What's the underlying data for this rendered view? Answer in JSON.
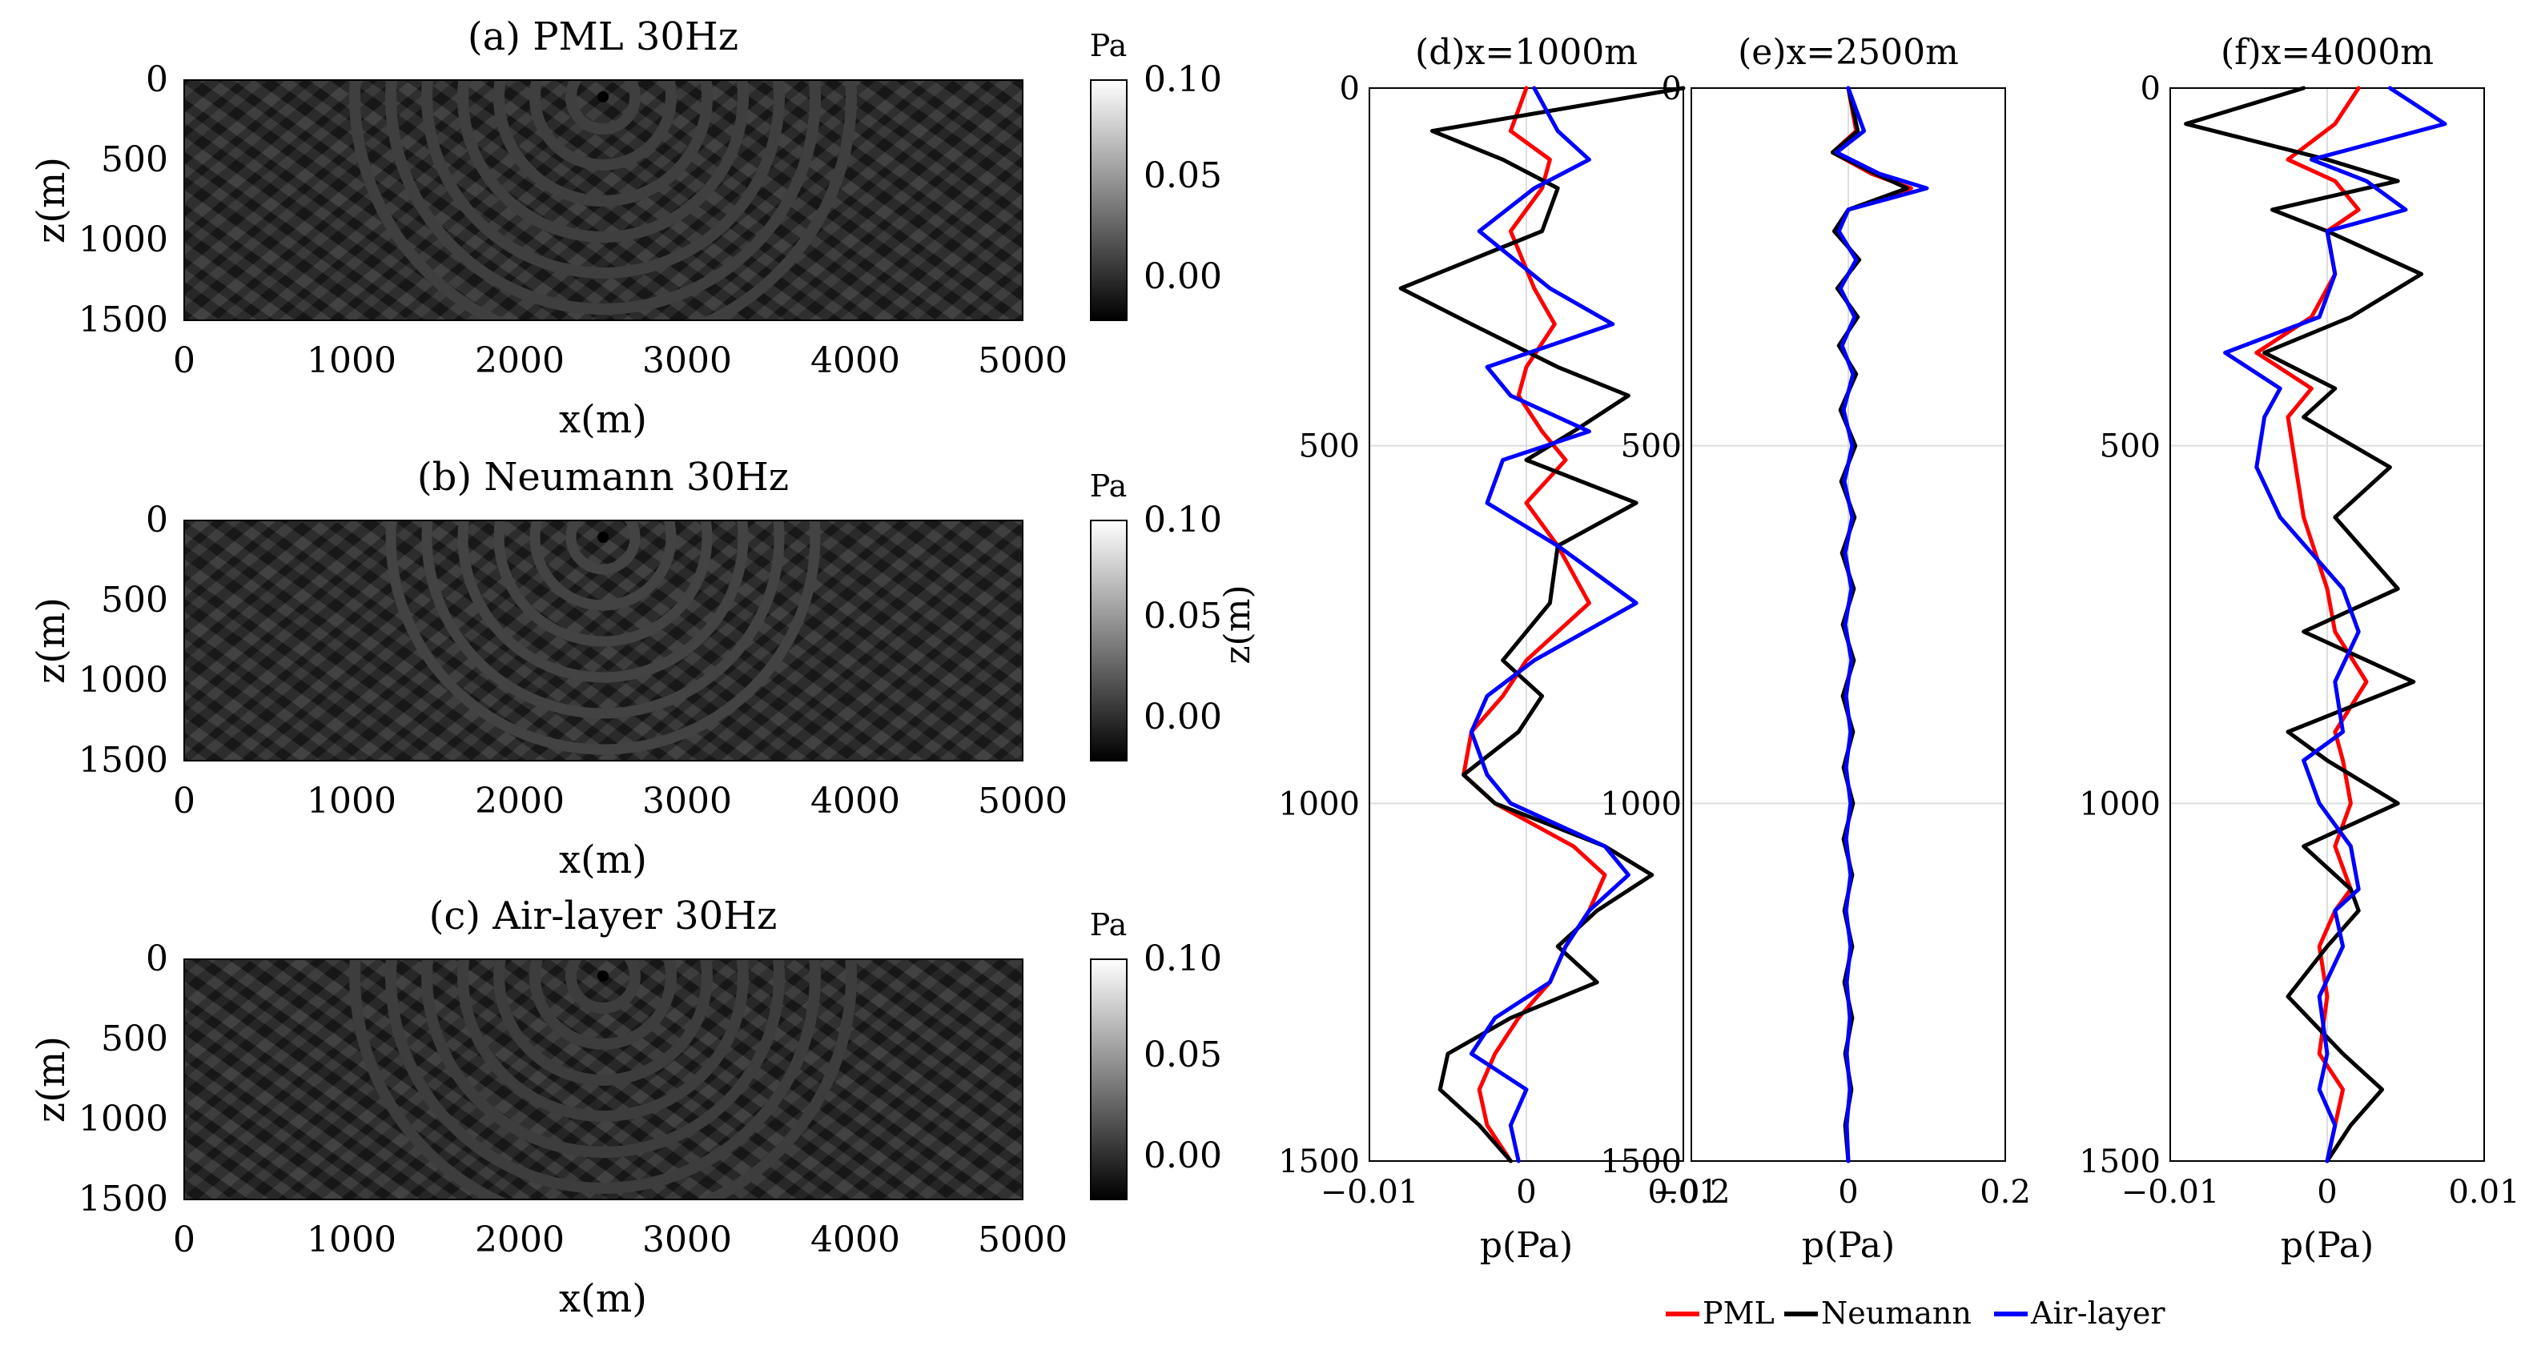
{
  "chart_data": [
    {
      "type": "heatmap",
      "title": "(a) PML 30Hz",
      "xlabel": "x(m)",
      "ylabel": "z(m)",
      "xlim": [
        0,
        5000
      ],
      "ylim": [
        1500,
        0
      ],
      "xticks": [
        "0",
        "1000",
        "2000",
        "3000",
        "4000",
        "5000"
      ],
      "yticks": [
        "0",
        "500",
        "1000",
        "1500"
      ],
      "source_x": 2500,
      "source_z": 100,
      "colorbar": {
        "unit": "Pa",
        "ticks": [
          "0.10",
          "0.05",
          "0.00"
        ],
        "range": [
          -0.02,
          0.1
        ]
      }
    },
    {
      "type": "heatmap",
      "title": "(b) Neumann 30Hz",
      "xlabel": "x(m)",
      "ylabel": "z(m)",
      "xlim": [
        0,
        5000
      ],
      "ylim": [
        1500,
        0
      ],
      "xticks": [
        "0",
        "1000",
        "2000",
        "3000",
        "4000",
        "5000"
      ],
      "yticks": [
        "0",
        "500",
        "1000",
        "1500"
      ],
      "source_x": 2500,
      "source_z": 100,
      "colorbar": {
        "unit": "Pa",
        "ticks": [
          "0.10",
          "0.05",
          "0.00"
        ],
        "range": [
          -0.02,
          0.1
        ]
      }
    },
    {
      "type": "heatmap",
      "title": "(c) Air-layer 30Hz",
      "xlabel": "x(m)",
      "ylabel": "z(m)",
      "xlim": [
        0,
        5000
      ],
      "ylim": [
        1500,
        0
      ],
      "xticks": [
        "0",
        "1000",
        "2000",
        "3000",
        "4000",
        "5000"
      ],
      "yticks": [
        "0",
        "500",
        "1000",
        "1500"
      ],
      "source_x": 2500,
      "source_z": 100,
      "colorbar": {
        "unit": "Pa",
        "ticks": [
          "0.10",
          "0.05",
          "0.00"
        ],
        "range": [
          -0.02,
          0.1
        ]
      }
    },
    {
      "type": "line",
      "title": "(d)x=1000m",
      "xlabel": "p(Pa)",
      "ylabel": "z(m)",
      "xlim": [
        -0.01,
        0.01
      ],
      "ylim": [
        1500,
        0
      ],
      "xticks": [
        "−0.01",
        "0",
        "0.01"
      ],
      "yticks": [
        "0",
        "500",
        "1000",
        "1500"
      ],
      "z": [
        0,
        60,
        100,
        140,
        200,
        280,
        330,
        390,
        430,
        480,
        520,
        580,
        640,
        720,
        800,
        850,
        900,
        960,
        1000,
        1060,
        1100,
        1150,
        1200,
        1250,
        1300,
        1350,
        1400,
        1450,
        1500
      ],
      "series": [
        {
          "name": "PML",
          "color": "#ff0000",
          "values": [
            0,
            -0.001,
            0.0015,
            0.001,
            -0.001,
            0.0005,
            0.0018,
            0.0,
            -0.0005,
            0.001,
            0.0025,
            0.0,
            0.002,
            0.004,
            0.0,
            -0.0015,
            -0.0035,
            -0.004,
            -0.002,
            0.003,
            0.005,
            0.004,
            0.0025,
            0.0015,
            -0.0005,
            -0.002,
            -0.003,
            -0.0025,
            -0.001
          ]
        },
        {
          "name": "Neumann",
          "color": "#000000",
          "values": [
            0.01,
            -0.006,
            -0.0015,
            0.002,
            0.001,
            -0.008,
            -0.0035,
            0.002,
            0.0065,
            0.003,
            0.0,
            0.007,
            0.002,
            0.0015,
            -0.0015,
            0.001,
            -0.0005,
            -0.004,
            -0.002,
            0.005,
            0.008,
            0.0045,
            0.002,
            0.0045,
            -0.001,
            -0.005,
            -0.0055,
            -0.003,
            -0.001
          ]
        },
        {
          "name": "Air-layer",
          "color": "#0000ff",
          "values": [
            0.0005,
            0.002,
            0.004,
            0.0005,
            -0.003,
            0.0015,
            0.0055,
            -0.0025,
            -0.001,
            0.004,
            -0.0015,
            -0.0025,
            0.002,
            0.007,
            0.0005,
            -0.0025,
            -0.0035,
            -0.0025,
            -0.001,
            0.005,
            0.0065,
            0.004,
            0.0025,
            0.0015,
            -0.002,
            -0.0035,
            0.0,
            -0.001,
            -0.0005
          ]
        }
      ],
      "grid": true
    },
    {
      "type": "line",
      "title": "(e)x=2500m",
      "xlabel": "p(Pa)",
      "ylabel": "",
      "xlim": [
        -0.2,
        0.2
      ],
      "ylim": [
        1500,
        0
      ],
      "xticks": [
        "−0.2",
        "0",
        "0.2"
      ],
      "yticks": [
        "0",
        "500",
        "1000",
        "1500"
      ],
      "z": [
        0,
        60,
        90,
        120,
        140,
        170,
        200,
        240,
        280,
        320,
        360,
        400,
        450,
        500,
        550,
        600,
        650,
        700,
        750,
        800,
        850,
        900,
        950,
        1000,
        1050,
        1100,
        1150,
        1200,
        1250,
        1300,
        1350,
        1400,
        1450,
        1500
      ],
      "series": [
        {
          "name": "PML",
          "color": "#ff0000",
          "values": [
            0.0,
            0.01,
            -0.02,
            0.03,
            0.08,
            0.0,
            -0.015,
            0.012,
            -0.012,
            0.01,
            -0.01,
            0.008,
            -0.008,
            0.007,
            -0.007,
            0.006,
            -0.006,
            0.005,
            -0.005,
            0.005,
            -0.005,
            0.004,
            -0.004,
            0.004,
            -0.004,
            0.004,
            -0.004,
            0.004,
            -0.004,
            0.004,
            -0.003,
            0.003,
            -0.003,
            0.0
          ]
        },
        {
          "name": "Neumann",
          "color": "#000000",
          "values": [
            0.0,
            0.012,
            -0.02,
            0.035,
            0.075,
            0.0,
            -0.018,
            0.014,
            -0.014,
            0.012,
            -0.012,
            0.01,
            -0.01,
            0.009,
            -0.009,
            0.008,
            -0.008,
            0.007,
            -0.007,
            0.007,
            -0.007,
            0.006,
            -0.006,
            0.006,
            -0.006,
            0.005,
            -0.005,
            0.005,
            -0.005,
            0.005,
            -0.004,
            0.004,
            -0.004,
            0.0
          ]
        },
        {
          "name": "Air-layer",
          "color": "#0000ff",
          "values": [
            0.0,
            0.02,
            -0.015,
            0.04,
            0.1,
            0.0,
            -0.012,
            0.01,
            -0.01,
            0.008,
            -0.008,
            0.006,
            -0.006,
            0.005,
            -0.005,
            0.005,
            -0.004,
            0.004,
            -0.004,
            0.004,
            -0.003,
            0.003,
            -0.003,
            0.003,
            -0.003,
            0.003,
            -0.003,
            0.003,
            -0.002,
            0.002,
            -0.002,
            0.002,
            -0.002,
            0.0
          ]
        }
      ],
      "grid": true
    },
    {
      "type": "line",
      "title": "(f)x=4000m",
      "xlabel": "p(Pa)",
      "ylabel": "",
      "xlim": [
        -0.01,
        0.01
      ],
      "ylim": [
        1500,
        0
      ],
      "xticks": [
        "−0.01",
        "0",
        "0.01"
      ],
      "yticks": [
        "0",
        "500",
        "1000",
        "1500"
      ],
      "z": [
        0,
        50,
        100,
        130,
        170,
        200,
        260,
        320,
        370,
        420,
        460,
        530,
        600,
        700,
        760,
        830,
        900,
        940,
        1000,
        1060,
        1120,
        1150,
        1200,
        1270,
        1350,
        1400,
        1450,
        1500
      ],
      "series": [
        {
          "name": "PML",
          "color": "#ff0000",
          "values": [
            0.002,
            0.0005,
            -0.0025,
            0.0005,
            0.002,
            0.0,
            0.0005,
            -0.001,
            -0.0045,
            -0.001,
            -0.0025,
            -0.002,
            -0.0015,
            0.0,
            0.0005,
            0.0025,
            0.0005,
            0.001,
            0.0015,
            0.0005,
            0.0015,
            0.0005,
            -0.0005,
            0.0,
            -0.0005,
            0.001,
            0.0005,
            0.0
          ]
        },
        {
          "name": "Neumann",
          "color": "#000000",
          "values": [
            -0.0015,
            -0.009,
            0.0,
            0.0045,
            -0.0035,
            0.0,
            0.006,
            0.0015,
            -0.004,
            0.0005,
            -0.0015,
            0.004,
            0.0005,
            0.0045,
            -0.0015,
            0.0055,
            -0.0025,
            0.0,
            0.0045,
            -0.0015,
            0.0015,
            0.002,
            0.0,
            -0.0025,
            0.001,
            0.0035,
            0.0015,
            0.0
          ]
        },
        {
          "name": "Air-layer",
          "color": "#0000ff",
          "values": [
            0.004,
            0.0075,
            -0.001,
            0.0025,
            0.005,
            0.0,
            0.0005,
            -0.0005,
            -0.0065,
            -0.003,
            -0.004,
            -0.0045,
            -0.003,
            0.001,
            0.002,
            0.0005,
            0.001,
            -0.0015,
            -0.0005,
            0.0015,
            0.002,
            0.0005,
            0.001,
            -0.0005,
            0.0,
            -0.0005,
            0.0005,
            0.0
          ]
        }
      ],
      "grid": true
    }
  ],
  "legend": {
    "placement": "bottom",
    "entries": [
      {
        "name": "PML",
        "color": "#ff0000"
      },
      {
        "name": "Neumann",
        "color": "#000000"
      },
      {
        "name": "Air-layer",
        "color": "#0000ff"
      }
    ]
  }
}
